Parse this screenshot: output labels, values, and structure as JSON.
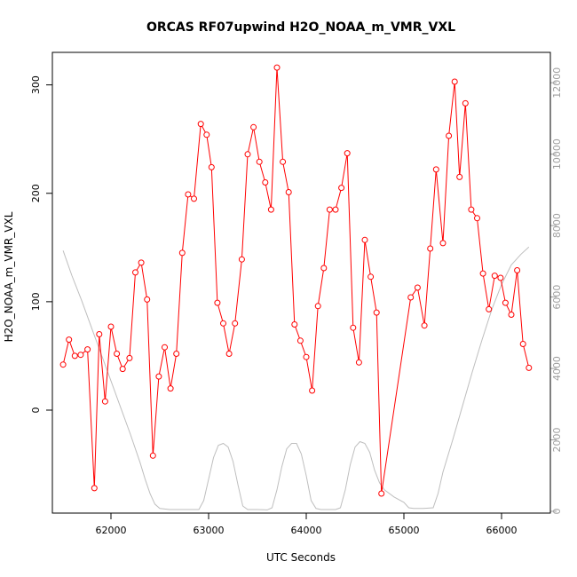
{
  "chart_data": {
    "type": "line",
    "title": "ORCAS RF07upwind H2O_NOAA_m_VMR_VXL",
    "xlabel": "UTC Seconds",
    "ylabel": "H2O_NOAA_m_VMR_VXL",
    "xlim": [
      61400,
      66500
    ],
    "ylim": [
      -95,
      330
    ],
    "y2lim": [
      -50,
      12850
    ],
    "x_ticks": [
      62000,
      63000,
      64000,
      65000,
      66000
    ],
    "y_ticks": [
      0,
      100,
      200,
      300
    ],
    "y2_ticks": [
      0,
      2000,
      4000,
      6000,
      8000,
      10000,
      12000
    ],
    "colors": {
      "series": "#ff0000",
      "secondary": "#bebebe",
      "axis": "#000000",
      "secondary_axis": "#a0a0a0"
    },
    "series": [
      {
        "axis": "left",
        "marker": "open-circle",
        "x": [
          61510,
          61570,
          61630,
          61690,
          61760,
          61830,
          61880,
          61940,
          62000,
          62060,
          62120,
          62190,
          62250,
          62310,
          62370,
          62430,
          62490,
          62550,
          62610,
          62670,
          62730,
          62790,
          62850,
          62920,
          62980,
          63030,
          63090,
          63150,
          63210,
          63270,
          63340,
          63400,
          63460,
          63520,
          63580,
          63640,
          63700,
          63760,
          63820,
          63880,
          63940,
          64000,
          64060,
          64120,
          64180,
          64240,
          64300,
          64360,
          64420,
          64480,
          64540,
          64600,
          64660,
          64720,
          64770,
          65070,
          65140,
          65210,
          65270,
          65330,
          65400,
          65460,
          65520,
          65570,
          65630,
          65690,
          65750,
          65810,
          65870,
          65930,
          65990,
          66040,
          66100,
          66160,
          66220,
          66280
        ],
        "y": [
          42,
          65,
          50,
          51,
          56,
          -72,
          70,
          8,
          77,
          52,
          38,
          48,
          127,
          136,
          102,
          -42,
          31,
          58,
          20,
          52,
          145,
          199,
          195,
          264,
          254,
          224,
          99,
          80,
          52,
          80,
          139,
          236,
          261,
          229,
          210,
          185,
          316,
          229,
          201,
          79,
          64,
          49,
          18,
          96,
          131,
          185,
          185,
          205,
          237,
          76,
          44,
          157,
          123,
          90,
          -77,
          104,
          113,
          78,
          149,
          222,
          154,
          253,
          303,
          215,
          283,
          185,
          177,
          126,
          93,
          124,
          122,
          99,
          88,
          129,
          61,
          39
        ]
      },
      {
        "axis": "right",
        "marker": "none",
        "x": [
          61510,
          61600,
          61700,
          61800,
          61900,
          62000,
          62100,
          62200,
          62300,
          62350,
          62400,
          62450,
          62500,
          62600,
          62700,
          62800,
          62850,
          62900,
          62950,
          63000,
          63050,
          63100,
          63150,
          63200,
          63250,
          63300,
          63350,
          63400,
          63500,
          63600,
          63650,
          63700,
          63750,
          63800,
          63850,
          63900,
          63950,
          64000,
          64050,
          64100,
          64150,
          64200,
          64300,
          64350,
          64400,
          64450,
          64500,
          64550,
          64600,
          64650,
          64700,
          64750,
          64800,
          64900,
          65000,
          65050,
          65100,
          65200,
          65300,
          65350,
          65400,
          65500,
          65600,
          65700,
          65800,
          65900,
          66000,
          66100,
          66200,
          66280
        ],
        "y": [
          7300,
          6600,
          5900,
          5150,
          4400,
          3650,
          2900,
          2150,
          1350,
          900,
          500,
          200,
          80,
          50,
          50,
          50,
          50,
          50,
          300,
          900,
          1500,
          1850,
          1900,
          1800,
          1400,
          750,
          150,
          50,
          50,
          40,
          100,
          600,
          1250,
          1750,
          1900,
          1900,
          1600,
          1000,
          300,
          80,
          50,
          50,
          50,
          100,
          600,
          1300,
          1800,
          1950,
          1900,
          1650,
          1150,
          800,
          600,
          400,
          250,
          100,
          80,
          80,
          100,
          500,
          1100,
          2000,
          2950,
          3900,
          4800,
          5650,
          6350,
          6900,
          7200,
          7400
        ]
      }
    ]
  }
}
